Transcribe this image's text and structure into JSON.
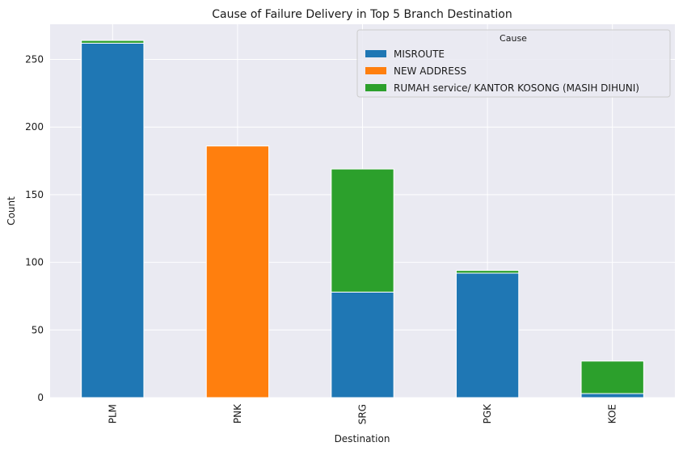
{
  "chart_data": {
    "type": "bar",
    "stacked": true,
    "title": "Cause of Failure Delivery in Top 5 Branch Destination",
    "xlabel": "Destination",
    "ylabel": "Count",
    "categories": [
      "PLM",
      "PNK",
      "SRG",
      "PGK",
      "KOE"
    ],
    "series": [
      {
        "name": "MISROUTE",
        "color": "#1f77b4",
        "values": [
          262,
          0,
          78,
          92,
          3
        ]
      },
      {
        "name": "NEW ADDRESS",
        "color": "#ff7f0e",
        "values": [
          0,
          186,
          0,
          0,
          0
        ]
      },
      {
        "name": "RUMAH service/ KANTOR KOSONG (MASIH DIHUNI)",
        "color": "#2ca02c",
        "values": [
          2,
          0,
          91,
          2,
          24
        ]
      }
    ],
    "ylim": [
      0,
      276
    ],
    "yticks": [
      0,
      50,
      100,
      150,
      200,
      250
    ],
    "grid": true,
    "legend": {
      "title": "Cause",
      "placement": "top-right"
    },
    "background": "#eaeaf2"
  }
}
